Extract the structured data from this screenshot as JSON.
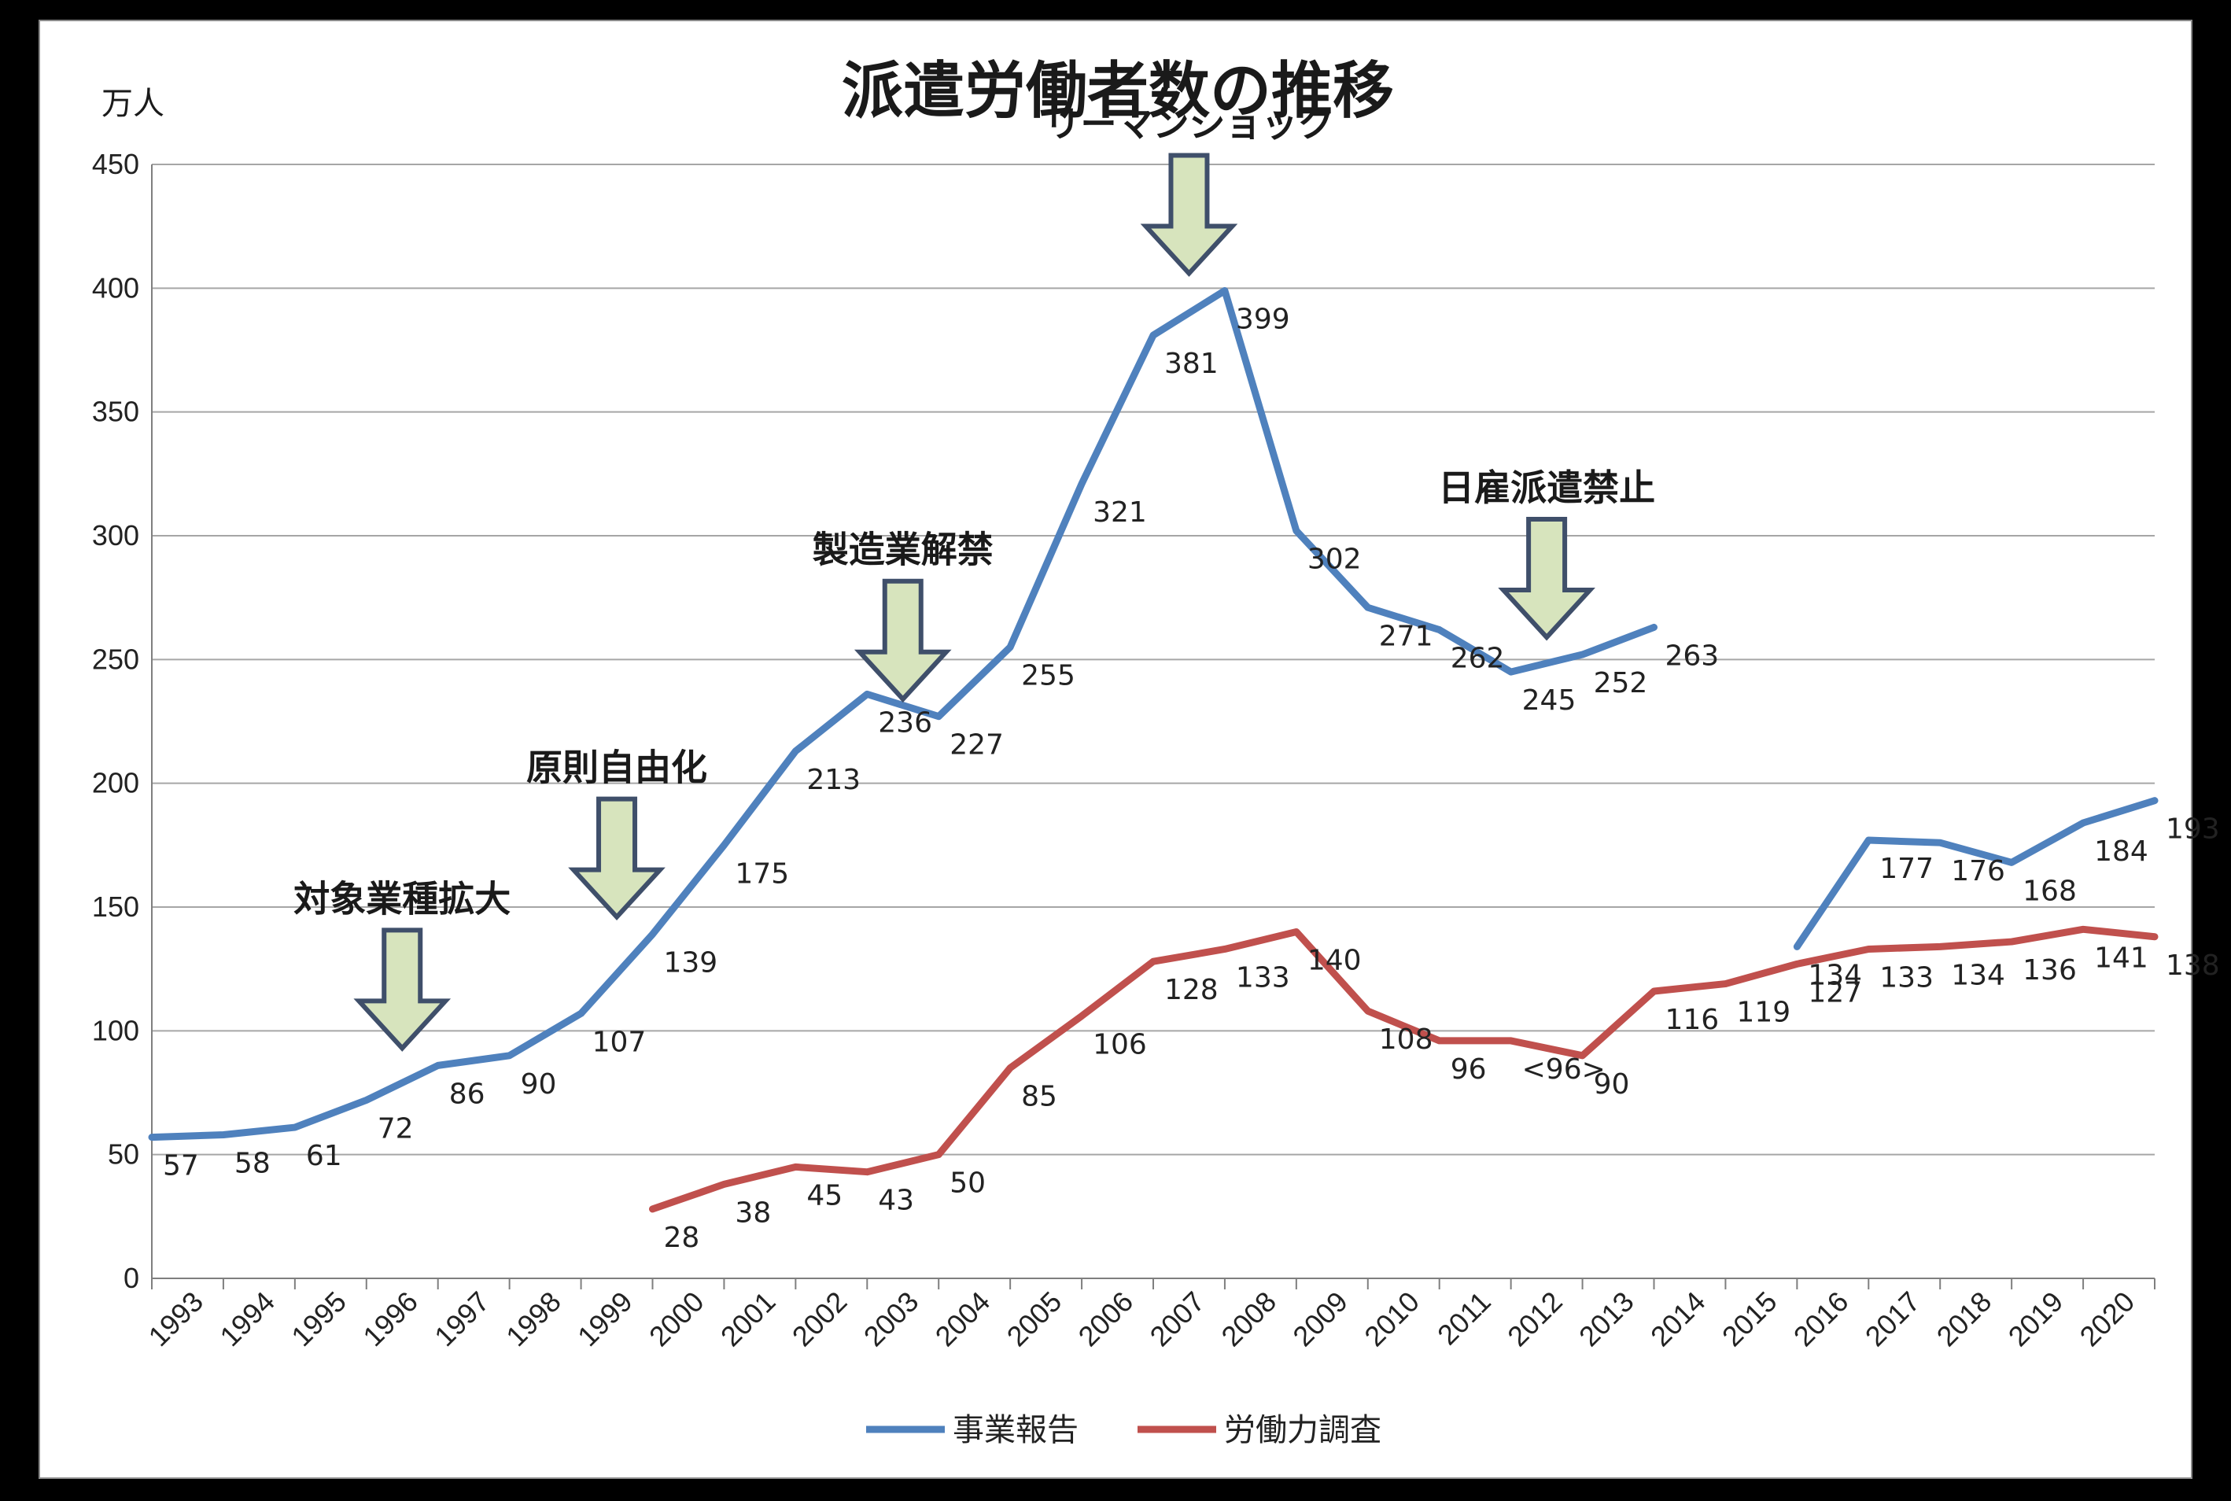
{
  "chart_data": {
    "type": "line",
    "title": "派遣労働者数の推移",
    "ylabel": "万人",
    "ylim": [
      0,
      450
    ],
    "yticks": [
      0,
      50,
      100,
      150,
      200,
      250,
      300,
      350,
      400,
      450
    ],
    "grid": true,
    "legend_position": "bottom",
    "x": [
      "1993",
      "1994",
      "1995",
      "1996",
      "1997",
      "1998",
      "1999",
      "2000",
      "2001",
      "2002",
      "2003",
      "2004",
      "2005",
      "2006",
      "2007",
      "2008",
      "2009",
      "2010",
      "2011",
      "2012",
      "2013",
      "2014",
      "2015",
      "2016",
      "2017",
      "2018",
      "2019",
      "2020"
    ],
    "series": [
      {
        "name": "事業報告",
        "color": "#4f81bd",
        "segments": [
          {
            "x": [
              "1993",
              "1994",
              "1995",
              "1996",
              "1997",
              "1998",
              "1999",
              "2000",
              "2001",
              "2002",
              "2003",
              "2004",
              "2005",
              "2006",
              "2007",
              "2008",
              "2009",
              "2010",
              "2011",
              "2012",
              "2013",
              "2014"
            ],
            "values": [
              57,
              58,
              61,
              72,
              86,
              90,
              107,
              139,
              175,
              213,
              236,
              227,
              255,
              321,
              381,
              399,
              302,
              271,
              262,
              245,
              252,
              263
            ],
            "labels": [
              "57",
              "58",
              "61",
              "72",
              "86",
              "90",
              "107",
              "139",
              "175",
              "213",
              "236",
              "227",
              "255",
              "321",
              "381",
              "399",
              "302",
              "271",
              "262",
              "245",
              "252",
              "263"
            ]
          },
          {
            "x": [
              "2016",
              "2017",
              "2018",
              "2019",
              "2020",
              "2021"
            ],
            "values": [
              134,
              177,
              176,
              168,
              184,
              193
            ],
            "labels": [
              "134",
              "177",
              "176",
              "168",
              "184",
              "193"
            ]
          }
        ]
      },
      {
        "name": "労働力調査",
        "color": "#c0504d",
        "segments": [
          {
            "x": [
              "2000",
              "2001",
              "2002",
              "2003",
              "2004",
              "2005",
              "2006",
              "2007",
              "2008",
              "2009",
              "2010",
              "2011",
              "2012",
              "2013",
              "2014",
              "2015",
              "2016",
              "2017",
              "2018",
              "2019",
              "2020",
              "2021"
            ],
            "values": [
              28,
              38,
              45,
              43,
              50,
              85,
              106,
              128,
              133,
              140,
              108,
              96,
              96,
              90,
              116,
              119,
              127,
              133,
              134,
              136,
              141,
              138
            ],
            "labels": [
              "28",
              "38",
              "45",
              "43",
              "50",
              "85",
              "106",
              "128",
              "133",
              "140",
              "108",
              "96",
              "<96>",
              "90",
              "116",
              "119",
              "127",
              "133",
              "134",
              "136",
              "141",
              "138"
            ]
          }
        ]
      }
    ],
    "annotations": [
      {
        "text": "対象業種拡大",
        "year": "1997"
      },
      {
        "text": "原則自由化",
        "year": "2000"
      },
      {
        "text": "製造業解禁",
        "year": "2004"
      },
      {
        "text": "リーマンショック",
        "year": "2008"
      },
      {
        "text": "日雇派遣禁止",
        "year": "2013"
      }
    ],
    "annotation_color": "#d7e4bd",
    "annotation_stroke": "#3f4f6a",
    "grid_color": "#a6a6a6"
  }
}
